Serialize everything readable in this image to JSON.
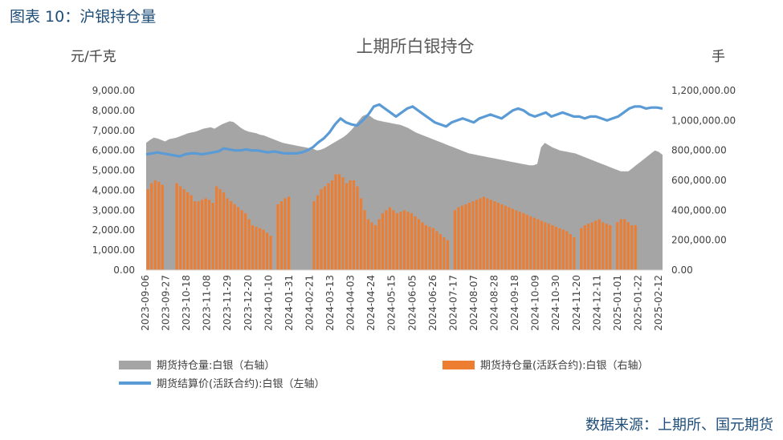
{
  "figure_caption": "图表 10：沪银持仓量",
  "source_note": "数据来源：上期所、国元期货",
  "chart_data": {
    "type": "bar+area+line",
    "title": "上期所白银持仓",
    "left_axis_unit": "元/千克",
    "right_axis_unit": "手",
    "left_ylim": [
      0,
      9000
    ],
    "right_ylim": [
      0,
      1200000
    ],
    "left_ticks": [
      "0.00",
      "1,000.00",
      "2,000.00",
      "3,000.00",
      "4,000.00",
      "5,000.00",
      "6,000.00",
      "7,000.00",
      "8,000.00",
      "9,000.00"
    ],
    "right_ticks": [
      "0.00",
      "200,000.00",
      "400,000.00",
      "600,000.00",
      "800,000.00",
      "1,000,000.00",
      "1,200,000.00"
    ],
    "x_tick_labels": [
      "2023-09-06",
      "2023-09-27",
      "2023-10-18",
      "2023-11-08",
      "2023-11-29",
      "2023-12-20",
      "2024-01-10",
      "2024-01-31",
      "2024-02-21",
      "2024-03-13",
      "2024-04-03",
      "2024-04-24",
      "2024-05-15",
      "2024-06-05",
      "2024-06-26",
      "2024-07-17",
      "2024-08-07",
      "2024-08-28",
      "2024-09-18",
      "2024-10-09",
      "2024-10-30",
      "2024-11-20",
      "2024-12-11",
      "2025-01-01",
      "2025-01-22",
      "2025-02-12"
    ],
    "colors": {
      "area": "#a5a5a5",
      "bars": "#ed7d31",
      "line": "#5b9bd5",
      "caption": "#1f4e79"
    },
    "series": [
      {
        "name": "期货持仓量:白银（右轴）",
        "type": "area",
        "axis": "right",
        "values": [
          850000,
          870000,
          885000,
          880000,
          870000,
          860000,
          875000,
          880000,
          885000,
          895000,
          905000,
          915000,
          920000,
          925000,
          935000,
          945000,
          950000,
          955000,
          945000,
          960000,
          975000,
          985000,
          995000,
          990000,
          970000,
          950000,
          935000,
          925000,
          920000,
          915000,
          905000,
          900000,
          890000,
          880000,
          870000,
          860000,
          850000,
          845000,
          840000,
          835000,
          830000,
          825000,
          820000,
          815000,
          810000,
          800000,
          805000,
          815000,
          830000,
          845000,
          860000,
          875000,
          890000,
          910000,
          935000,
          965000,
          1000000,
          1030000,
          1040000,
          1030000,
          1010000,
          1000000,
          995000,
          990000,
          985000,
          980000,
          975000,
          970000,
          960000,
          950000,
          935000,
          920000,
          910000,
          900000,
          890000,
          880000,
          870000,
          860000,
          850000,
          840000,
          830000,
          820000,
          810000,
          800000,
          790000,
          780000,
          775000,
          770000,
          765000,
          760000,
          755000,
          750000,
          745000,
          740000,
          735000,
          730000,
          725000,
          720000,
          715000,
          710000,
          705000,
          700000,
          700000,
          710000,
          820000,
          850000,
          835000,
          820000,
          810000,
          800000,
          795000,
          790000,
          785000,
          780000,
          770000,
          760000,
          750000,
          740000,
          730000,
          720000,
          710000,
          700000,
          690000,
          680000,
          670000,
          660000,
          660000,
          660000,
          680000,
          700000,
          720000,
          740000,
          760000,
          780000,
          800000,
          790000,
          770000
        ]
      },
      {
        "name": "期货持仓量(活跃合约):白银（右轴）",
        "type": "bar",
        "axis": "right",
        "values": [
          540000,
          580000,
          600000,
          590000,
          570000,
          0,
          0,
          0,
          580000,
          560000,
          540000,
          520000,
          500000,
          460000,
          460000,
          470000,
          480000,
          470000,
          450000,
          560000,
          540000,
          520000,
          480000,
          460000,
          440000,
          420000,
          400000,
          380000,
          340000,
          300000,
          290000,
          280000,
          270000,
          250000,
          230000,
          0,
          440000,
          460000,
          480000,
          490000,
          0,
          0,
          0,
          0,
          0,
          0,
          460000,
          500000,
          540000,
          560000,
          580000,
          600000,
          640000,
          640000,
          620000,
          580000,
          600000,
          600000,
          560000,
          480000,
          400000,
          340000,
          320000,
          300000,
          340000,
          380000,
          400000,
          420000,
          400000,
          380000,
          390000,
          400000,
          390000,
          380000,
          360000,
          340000,
          320000,
          300000,
          290000,
          280000,
          260000,
          240000,
          220000,
          200000,
          0,
          400000,
          420000,
          430000,
          440000,
          450000,
          460000,
          470000,
          480000,
          490000,
          480000,
          470000,
          460000,
          450000,
          440000,
          430000,
          420000,
          410000,
          400000,
          390000,
          380000,
          370000,
          360000,
          350000,
          340000,
          330000,
          320000,
          310000,
          300000,
          290000,
          280000,
          270000,
          260000,
          240000,
          220000,
          0,
          280000,
          300000,
          310000,
          320000,
          330000,
          340000,
          320000,
          310000,
          300000,
          0,
          320000,
          340000,
          340000,
          320000,
          300000,
          300000,
          0,
          0,
          0,
          0,
          0,
          0,
          0
        ]
      },
      {
        "name": "期货结算价(活跃合约):白银（左轴）",
        "type": "line",
        "axis": "left",
        "values": [
          5800,
          5850,
          5900,
          5850,
          5800,
          5750,
          5700,
          5800,
          5850,
          5850,
          5800,
          5850,
          5900,
          5950,
          6100,
          6050,
          6000,
          6000,
          6050,
          6000,
          6000,
          5950,
          5900,
          5950,
          5900,
          5850,
          5850,
          5850,
          5900,
          6000,
          6150,
          6400,
          6600,
          6900,
          7300,
          7600,
          7400,
          7300,
          7250,
          7500,
          7800,
          8200,
          8300,
          8100,
          7900,
          7700,
          7900,
          8100,
          8200,
          8000,
          7800,
          7600,
          7400,
          7300,
          7200,
          7400,
          7500,
          7600,
          7500,
          7400,
          7600,
          7700,
          7800,
          7700,
          7600,
          7800,
          8000,
          8100,
          8000,
          7800,
          7700,
          7800,
          7900,
          7700,
          7800,
          7900,
          7800,
          7700,
          7700,
          7600,
          7700,
          7700,
          7600,
          7500,
          7600,
          7700,
          7900,
          8100,
          8200,
          8200,
          8100,
          8150,
          8150,
          8100
        ]
      }
    ],
    "legend": [
      "期货持仓量:白银（右轴）",
      "期货持仓量(活跃合约):白银（右轴）",
      "期货结算价(活跃合约):白银（左轴）"
    ],
    "legend_position": "bottom"
  }
}
